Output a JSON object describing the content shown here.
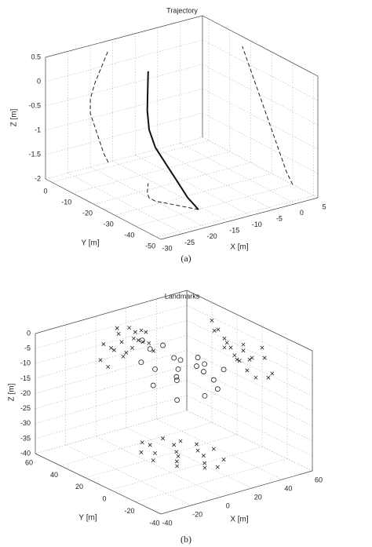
{
  "chart_data": [
    {
      "type": "line3d",
      "title": "Trajectory",
      "caption": "(a)",
      "xlabel": "X [m]",
      "ylabel": "Y [m]",
      "zlabel": "Z [m]",
      "xlim": [
        -30,
        5
      ],
      "ylim": [
        -52,
        3
      ],
      "zlim": [
        -2,
        0.5
      ],
      "xticks": [
        -30,
        -25,
        -20,
        -15,
        -10,
        -5,
        0,
        5
      ],
      "yticks": [
        -50,
        -40,
        -30,
        -20,
        -10,
        0
      ],
      "zticks": [
        -2,
        -1.5,
        -1,
        -0.5,
        0,
        0.5
      ],
      "x": [
        -16,
        -17,
        -18,
        -19,
        -20,
        -20,
        -19,
        -18,
        -17,
        -16
      ],
      "y": [
        -40,
        -37,
        -34,
        -31,
        -28,
        -25,
        -22,
        -20,
        -18,
        -16
      ],
      "z": [
        -2,
        -1.8,
        -1.5,
        -1.2,
        -0.9,
        -0.6,
        -0.3,
        -0.1,
        0.1,
        0.3
      ]
    },
    {
      "type": "scatter3d",
      "title": "Landmarks",
      "caption": "(b)",
      "xlabel": "X [m]",
      "ylabel": "Y [m]",
      "zlabel": "Z [m]",
      "xlim": [
        -40,
        60
      ],
      "ylim": [
        -40,
        60
      ],
      "zlim": [
        -40,
        0
      ],
      "xticks": [
        -40,
        -20,
        0,
        20,
        40,
        60
      ],
      "yticks": [
        -40,
        -20,
        0,
        20,
        40,
        60
      ],
      "zticks": [
        -40,
        -35,
        -30,
        -25,
        -20,
        -15,
        -10,
        -5,
        0
      ],
      "x": [
        5,
        10,
        15,
        20,
        25,
        30,
        35,
        8,
        12,
        18,
        22,
        28,
        33,
        38,
        3,
        14,
        26,
        31,
        17,
        24
      ],
      "y": [
        30,
        25,
        35,
        20,
        28,
        15,
        22,
        5,
        10,
        -5,
        0,
        8,
        -2,
        12,
        18,
        40,
        38,
        30,
        15,
        -8
      ],
      "z": [
        -10,
        -12,
        -8,
        -15,
        -11,
        -9,
        -14,
        -18,
        -13,
        -16,
        -7,
        -12,
        -10,
        -17,
        -15,
        -6,
        -9,
        -13,
        -11,
        -14
      ]
    }
  ]
}
